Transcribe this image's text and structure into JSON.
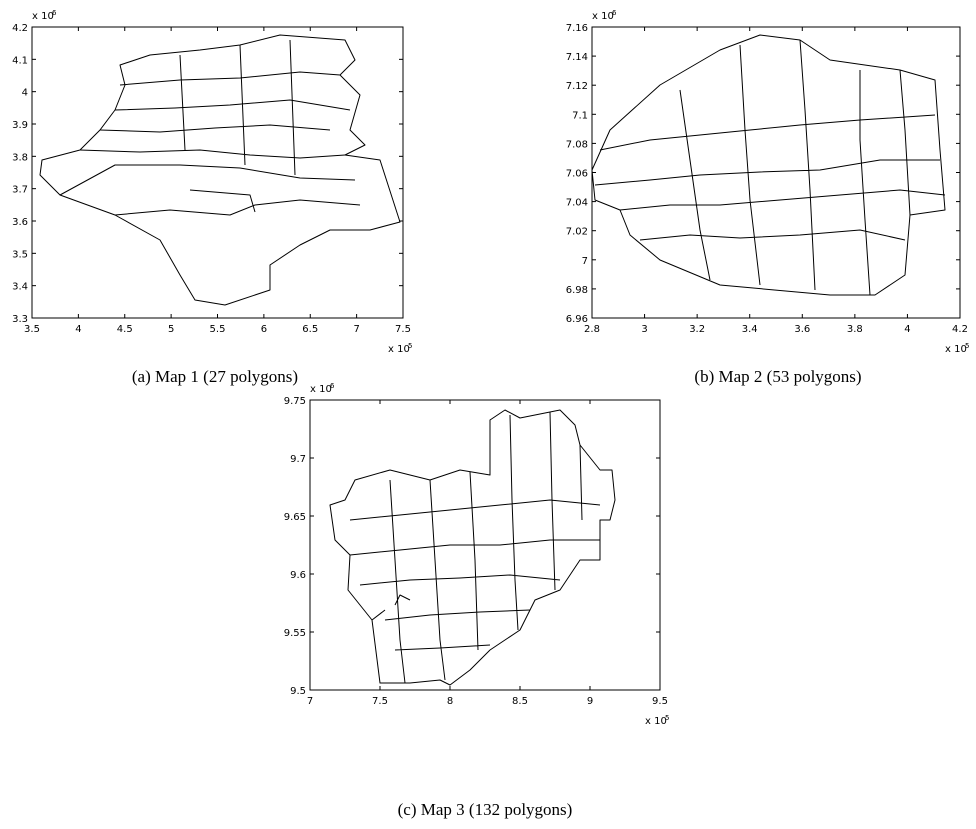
{
  "chart_data": [
    {
      "type": "map",
      "caption": "(a) Map 1 (27 polygons)",
      "xlim": [
        3.5,
        7.5
      ],
      "xticks": [
        3.5,
        4,
        4.5,
        5,
        5.5,
        6,
        6.5,
        7,
        7.5
      ],
      "ylim": [
        3.3,
        4.2
      ],
      "yticks": [
        3.3,
        3.4,
        3.5,
        3.6,
        3.7,
        3.8,
        3.9,
        4,
        4.1,
        4.2
      ],
      "x_multiplier": "x 10",
      "x_exponent": "5",
      "y_multiplier": "x 10",
      "y_exponent": "6"
    },
    {
      "type": "map",
      "caption": "(b) Map 2 (53 polygons)",
      "xlim": [
        2.8,
        4.2
      ],
      "xticks": [
        2.8,
        3,
        3.2,
        3.4,
        3.6,
        3.8,
        4,
        4.2
      ],
      "ylim": [
        6.96,
        7.16
      ],
      "yticks": [
        6.96,
        6.98,
        7,
        7.02,
        7.04,
        7.06,
        7.08,
        7.1,
        7.12,
        7.14,
        7.16
      ],
      "x_multiplier": "x 10",
      "x_exponent": "5",
      "y_multiplier": "x 10",
      "y_exponent": "6"
    },
    {
      "type": "map",
      "caption": "(c) Map 3 (132 polygons)",
      "xlim": [
        7,
        9.5
      ],
      "xticks": [
        7,
        7.5,
        8,
        8.5,
        9,
        9.5
      ],
      "ylim": [
        9.5,
        9.75
      ],
      "yticks": [
        9.5,
        9.55,
        9.6,
        9.65,
        9.7,
        9.75
      ],
      "x_multiplier": "x 10",
      "x_exponent": "5",
      "y_multiplier": "x 10",
      "y_exponent": "6"
    }
  ]
}
